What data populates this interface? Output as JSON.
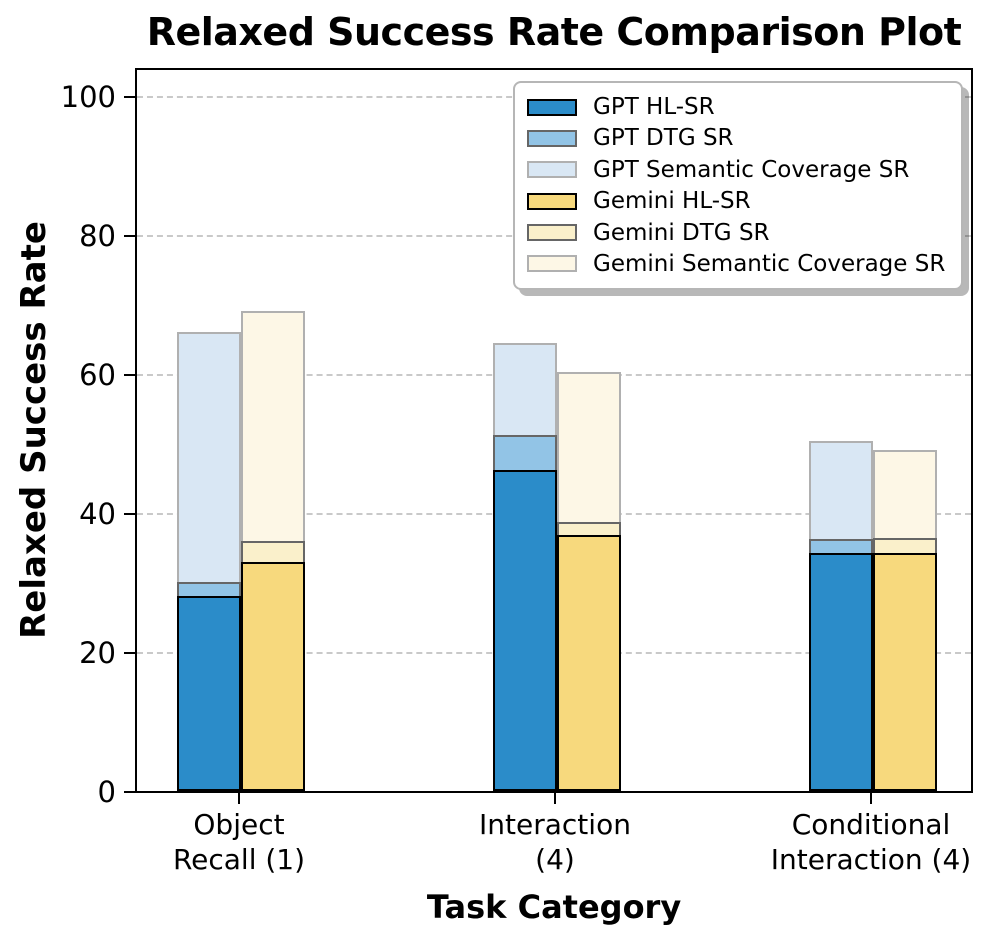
{
  "chart_data": {
    "type": "bar",
    "title": "Relaxed Success Rate Comparison Plot",
    "xlabel": "Task Category",
    "ylabel": "Relaxed Success Rate",
    "ylim": [
      0,
      104
    ],
    "yticks": [
      0,
      20,
      40,
      60,
      80,
      100
    ],
    "grid": "horizontal-dashed",
    "legend_position": "upper-right",
    "categories": [
      "Object\nRecall (1)",
      "Interaction\n(4)",
      "Conditional\nInteraction (4)"
    ],
    "series": [
      {
        "name": "GPT HL-SR",
        "fill": "#2b8cc9",
        "edge": "#000000",
        "values": [
          28,
          46.2,
          34.2
        ]
      },
      {
        "name": "GPT DTG SR",
        "fill": "#92c4e6",
        "edge": "#666666",
        "values": [
          30,
          51.2,
          36.3
        ]
      },
      {
        "name": "GPT Semantic Coverage SR",
        "fill": "#d9e7f4",
        "edge": "#b0b0b0",
        "values": [
          66,
          64.5,
          50.3
        ]
      },
      {
        "name": "Gemini HL-SR",
        "fill": "#f7d97d",
        "edge": "#000000",
        "values": [
          33,
          36.8,
          34.2
        ]
      },
      {
        "name": "Gemini DTG SR",
        "fill": "#faf0cb",
        "edge": "#666666",
        "values": [
          36,
          38.7,
          36.4
        ]
      },
      {
        "name": "Gemini Semantic Coverage SR",
        "fill": "#fdf7e6",
        "edge": "#b0b0b0",
        "values": [
          69,
          60.3,
          49
        ]
      }
    ]
  }
}
